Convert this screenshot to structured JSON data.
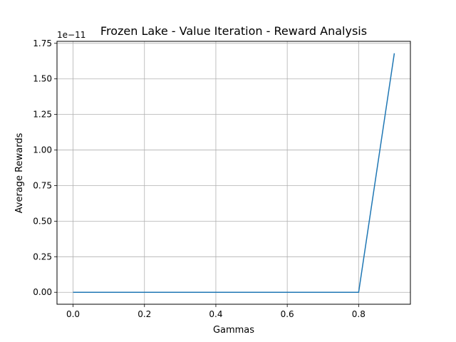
{
  "chart_data": {
    "type": "line",
    "title": "Frozen Lake - Value Iteration - Reward Analysis",
    "xlabel": "Gammas",
    "ylabel": "Average Rewards",
    "y_offset_label": "1e−11",
    "y_multiplier": 1e-11,
    "xlim": [
      -0.045,
      0.945
    ],
    "ylim": [
      -0.084,
      1.764
    ],
    "x_ticks": [
      0.0,
      0.2,
      0.4,
      0.6,
      0.8
    ],
    "x_tick_labels": [
      "0.0",
      "0.2",
      "0.4",
      "0.6",
      "0.8"
    ],
    "y_ticks": [
      0.0,
      0.25,
      0.5,
      0.75,
      1.0,
      1.25,
      1.5,
      1.75
    ],
    "y_tick_labels": [
      "0.00",
      "0.25",
      "0.50",
      "0.75",
      "1.00",
      "1.25",
      "1.50",
      "1.75"
    ],
    "grid": true,
    "series": [
      {
        "color": "#1f77b4",
        "x": [
          0.0,
          0.1,
          0.2,
          0.3,
          0.4,
          0.5,
          0.6,
          0.7,
          0.8,
          0.9
        ],
        "y": [
          0,
          0,
          0,
          0,
          0,
          0,
          0,
          0,
          0,
          1.68
        ]
      }
    ]
  }
}
